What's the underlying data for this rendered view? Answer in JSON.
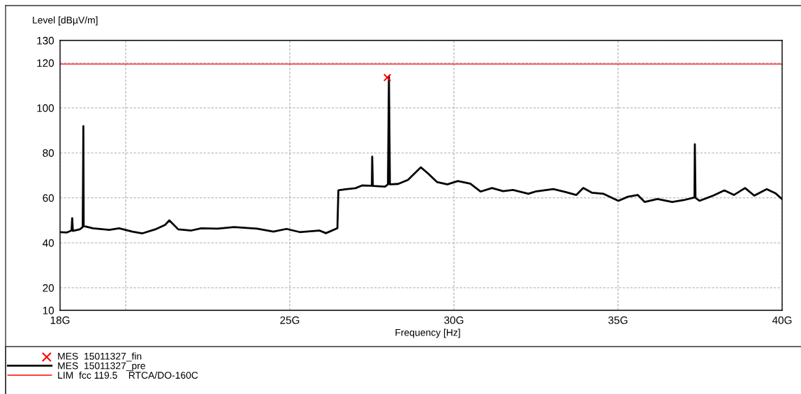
{
  "chart_data": {
    "type": "line",
    "xlabel": "Frequency [Hz]",
    "ylabel": "Level [dBµV/m]",
    "xlim": [
      18,
      40
    ],
    "xticks": [
      {
        "value": 18,
        "label": "18G"
      },
      {
        "value": 20,
        "label": null
      },
      {
        "value": 25,
        "label": "25G"
      },
      {
        "value": 30,
        "label": "30G"
      },
      {
        "value": 35,
        "label": "35G"
      },
      {
        "value": 40,
        "label": "40G"
      }
    ],
    "ylim": [
      10,
      130
    ],
    "yticks": [
      10,
      20,
      40,
      60,
      80,
      100,
      120,
      130
    ],
    "grid": true,
    "legend": "bottom left",
    "series": [
      {
        "name": "MES  15011327_fin",
        "type": "scatter",
        "marker": "cross",
        "color": "#ff0000",
        "x": [
          27.97
        ],
        "values": [
          113.5
        ]
      },
      {
        "name": "MES  15011327_pre",
        "color": "#000000",
        "x": [
          18.0,
          18.2,
          18.35,
          18.37,
          18.39,
          18.6,
          18.69,
          18.7,
          18.71,
          18.72,
          19.0,
          19.5,
          19.8,
          20.2,
          20.5,
          20.9,
          21.2,
          21.33,
          21.6,
          22.0,
          22.3,
          22.8,
          23.3,
          24.0,
          24.5,
          24.9,
          25.3,
          25.9,
          26.1,
          26.45,
          26.48,
          26.7,
          27.0,
          27.2,
          27.5,
          27.51,
          27.53,
          27.9,
          27.99,
          28.02,
          28.05,
          28.3,
          28.6,
          28.99,
          29.2,
          29.49,
          29.8,
          30.12,
          30.5,
          30.81,
          31.16,
          31.5,
          31.8,
          32.27,
          32.48,
          33.03,
          33.4,
          33.73,
          33.94,
          34.2,
          34.56,
          35.01,
          35.3,
          35.6,
          35.81,
          36.2,
          36.65,
          37.0,
          37.33,
          37.34,
          37.36,
          37.48,
          37.9,
          38.24,
          38.53,
          38.87,
          39.15,
          39.53,
          39.8,
          40.0
        ],
        "values": [
          44.8,
          44.6,
          45.5,
          51.0,
          45.3,
          46.0,
          47.0,
          67.0,
          91.9,
          47.5,
          46.5,
          45.8,
          46.5,
          45.0,
          44.2,
          46.0,
          48.0,
          50.0,
          46.0,
          45.5,
          46.5,
          46.3,
          47.0,
          46.3,
          45.0,
          46.2,
          44.8,
          45.5,
          44.3,
          46.5,
          63.4,
          63.8,
          64.3,
          65.5,
          65.4,
          78.3,
          65.3,
          65.0,
          66.0,
          113.9,
          66.0,
          66.2,
          68.0,
          73.6,
          71.0,
          67.0,
          66.0,
          67.5,
          66.3,
          62.8,
          64.4,
          63.0,
          63.5,
          61.8,
          62.8,
          63.9,
          62.6,
          61.3,
          64.4,
          62.3,
          61.8,
          58.7,
          60.5,
          61.3,
          58.2,
          59.5,
          58.2,
          59.0,
          60.2,
          83.8,
          60.0,
          58.7,
          61.0,
          63.3,
          61.3,
          64.4,
          61.0,
          63.9,
          62.0,
          59.4
        ]
      }
    ],
    "ref_lines": [
      {
        "axis": "y",
        "value": 119.5,
        "label": "LIM  fcc 119.5    RTCA/DO-160C",
        "color": "#ff0000",
        "line_style": "solid"
      }
    ]
  }
}
